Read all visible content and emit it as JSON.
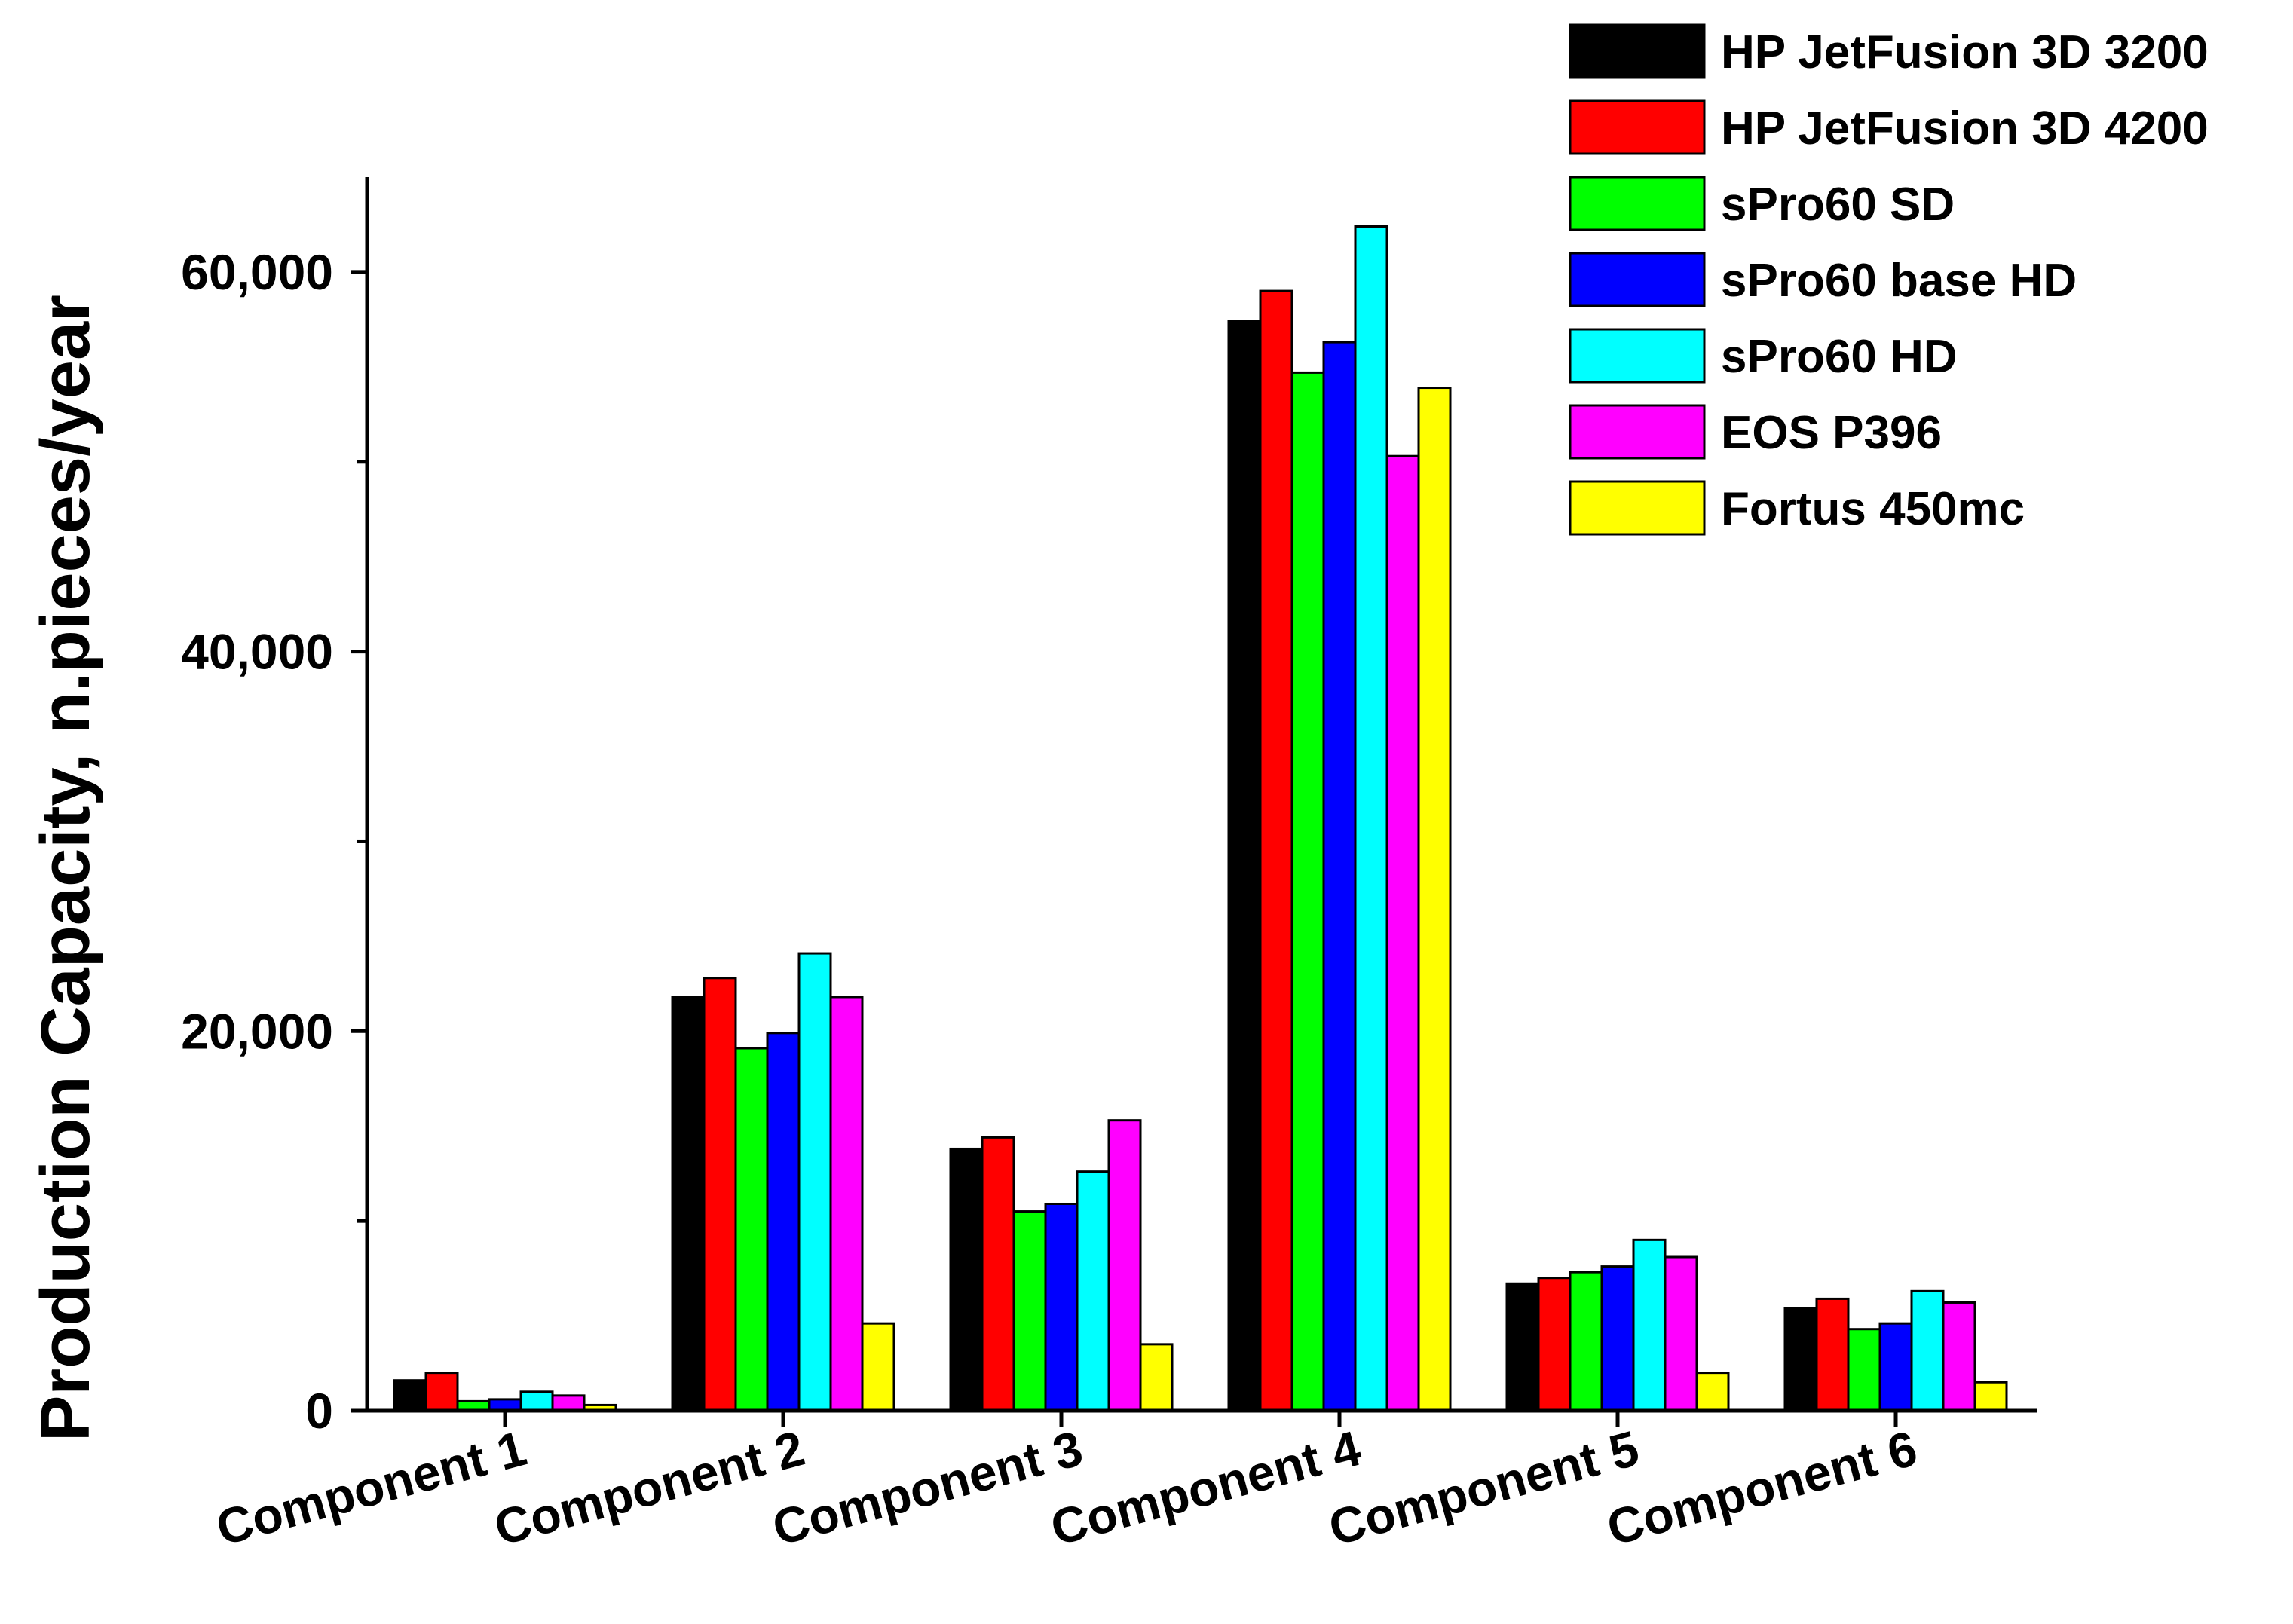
{
  "chart_data": {
    "type": "bar",
    "title": "",
    "xlabel": "",
    "ylabel": "Production Capacity, n.pieces/year",
    "ylim": [
      0,
      65000
    ],
    "yticks": [
      0,
      20000,
      40000,
      60000
    ],
    "ytick_labels": [
      "0",
      "20,000",
      "40,000",
      "60,000"
    ],
    "y_minor_ticks": [
      10000,
      30000,
      50000
    ],
    "grid": false,
    "legend_position": "top-right",
    "categories": [
      "Component 1",
      "Component 2",
      "Component 3",
      "Component 4",
      "Component 5",
      "Component 6"
    ],
    "series": [
      {
        "name": "HP JetFusion 3D 3200",
        "color": "#000000",
        "values": [
          1600,
          21800,
          13800,
          57400,
          6700,
          5400
        ]
      },
      {
        "name": "HP JetFusion 3D 4200",
        "color": "#ff0000",
        "values": [
          2000,
          22800,
          14400,
          59000,
          7000,
          5900
        ]
      },
      {
        "name": "sPro60 SD",
        "color": "#00ff00",
        "values": [
          500,
          19100,
          10500,
          54700,
          7300,
          4300
        ]
      },
      {
        "name": "sPro60 base HD",
        "color": "#0000ff",
        "values": [
          600,
          19900,
          10900,
          56300,
          7600,
          4600
        ]
      },
      {
        "name": "sPro60 HD",
        "color": "#00ffff",
        "values": [
          1000,
          24100,
          12600,
          62400,
          9000,
          6300
        ]
      },
      {
        "name": "EOS P396",
        "color": "#ff00ff",
        "values": [
          800,
          21800,
          15300,
          50300,
          8100,
          5700
        ]
      },
      {
        "name": "Fortus 450mc",
        "color": "#ffff00",
        "values": [
          300,
          4600,
          3500,
          53900,
          2000,
          1500
        ]
      }
    ]
  }
}
